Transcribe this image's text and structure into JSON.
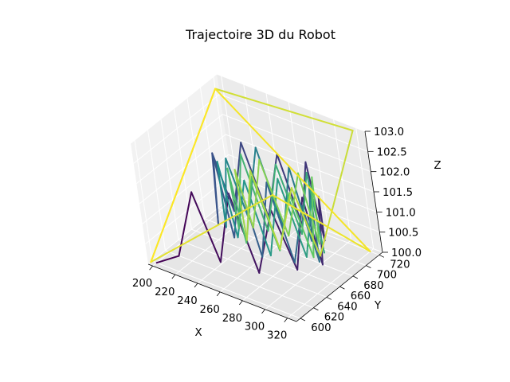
{
  "chart_data": {
    "type": "line",
    "projection": "3d",
    "title": "Trajectoire 3D du Robot",
    "xlabel": "X",
    "ylabel": "Y",
    "zlabel": "Z",
    "x_ticks": [
      "200",
      "220",
      "240",
      "260",
      "280",
      "300",
      "320"
    ],
    "y_ticks": [
      "600",
      "620",
      "640",
      "660",
      "680",
      "700",
      "720"
    ],
    "z_ticks": [
      "100.0",
      "100.5",
      "101.0",
      "101.5",
      "102.0",
      "102.5",
      "103.0"
    ],
    "xlim": [
      196,
      328
    ],
    "ylim": [
      594,
      725
    ],
    "zlim": [
      100.0,
      103.0
    ],
    "grid": true,
    "colormap": "viridis",
    "colormap_stops": [
      "#440154",
      "#3b528b",
      "#21918c",
      "#5ec962",
      "#fde725"
    ],
    "series": [
      {
        "x": [
          200,
          215,
          232,
          248,
          262,
          276,
          290,
          300,
          306,
          308,
          305,
          298,
          285,
          270,
          255,
          240,
          228,
          218,
          212,
          215,
          225,
          238,
          252,
          266,
          280,
          293,
          302,
          304,
          298,
          287,
          272,
          258,
          244,
          232,
          224,
          222,
          228,
          240,
          255,
          270,
          284,
          296,
          303,
          300,
          290,
          276,
          262,
          250,
          240,
          234,
          236,
          246,
          260,
          275,
          288,
          297,
          300,
          294,
          282,
          266,
          252,
          242,
          238,
          244,
          258,
          274,
          289,
          300,
          320,
          196,
          196,
          320,
          320,
          196,
          196
        ],
        "y": [
          600,
          610,
          615,
          618,
          622,
          628,
          636,
          646,
          658,
          670,
          682,
          692,
          700,
          705,
          706,
          704,
          698,
          690,
          680,
          670,
          662,
          656,
          652,
          650,
          650,
          654,
          662,
          672,
          682,
          690,
          695,
          697,
          694,
          688,
          680,
          670,
          662,
          658,
          656,
          656,
          660,
          667,
          676,
          686,
          692,
          694,
          692,
          686,
          678,
          670,
          663,
          660,
          660,
          662,
          667,
          675,
          684,
          690,
          692,
          690,
          685,
          678,
          670,
          664,
          662,
          664,
          670,
          680,
          720,
          720,
          598,
          598,
          720,
          720,
          598
        ],
        "z": [
          100.0,
          100.2,
          101.9,
          100.3,
          102.1,
          100.2,
          101.8,
          100.3,
          102.0,
          100.2,
          101.7,
          100.4,
          102.1,
          100.3,
          101.9,
          100.2,
          102.0,
          100.3,
          101.8,
          100.2,
          102.1,
          100.3,
          101.9,
          100.2,
          102.2,
          100.3,
          101.7,
          100.2,
          102.0,
          100.3,
          101.9,
          100.2,
          102.1,
          100.3,
          101.8,
          100.2,
          102.0,
          100.3,
          101.9,
          100.2,
          102.2,
          100.3,
          101.8,
          100.2,
          102.0,
          100.3,
          101.9,
          100.2,
          102.1,
          100.3,
          101.9,
          100.2,
          102.0,
          100.3,
          101.8,
          100.2,
          102.1,
          100.3,
          101.9,
          100.2,
          102.0,
          100.3,
          101.8,
          100.2,
          102.1,
          100.3,
          101.9,
          100.2,
          103.0,
          102.7,
          100.0,
          103.0,
          100.0,
          102.7,
          100.0
        ]
      }
    ]
  }
}
